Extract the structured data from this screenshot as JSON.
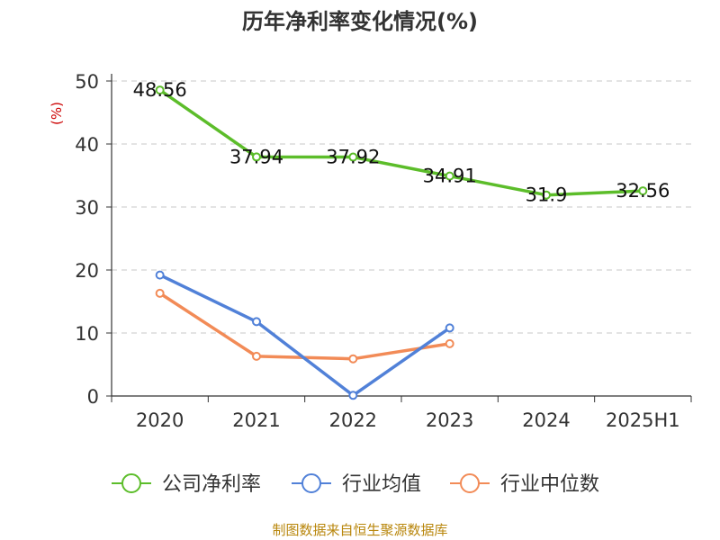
{
  "chart_data": {
    "type": "line",
    "title": "历年净利率变化情况(%)",
    "ylabel": "(%)",
    "categories": [
      "2020",
      "2021",
      "2022",
      "2023",
      "2024",
      "2025H1"
    ],
    "ylim": [
      0,
      50
    ],
    "yticks": [
      "0",
      "10",
      "20",
      "30",
      "40",
      "50"
    ],
    "grid": true,
    "legend_position": "bottom",
    "series": [
      {
        "name": "公司净利率",
        "color": "#5cbd2a",
        "values": [
          48.56,
          37.94,
          37.92,
          34.91,
          31.9,
          32.56
        ],
        "labels": [
          "48.56",
          "37.94",
          "37.92",
          "34.91",
          "31.9",
          "32.56"
        ]
      },
      {
        "name": "行业均值",
        "color": "#5181d8",
        "values": [
          19.2,
          11.8,
          0.1,
          10.8,
          null,
          null
        ]
      },
      {
        "name": "行业中位数",
        "color": "#f28b57",
        "values": [
          16.3,
          6.3,
          5.9,
          8.3,
          null,
          null
        ]
      }
    ]
  },
  "source_text": "制图数据来自恒生聚源数据库"
}
